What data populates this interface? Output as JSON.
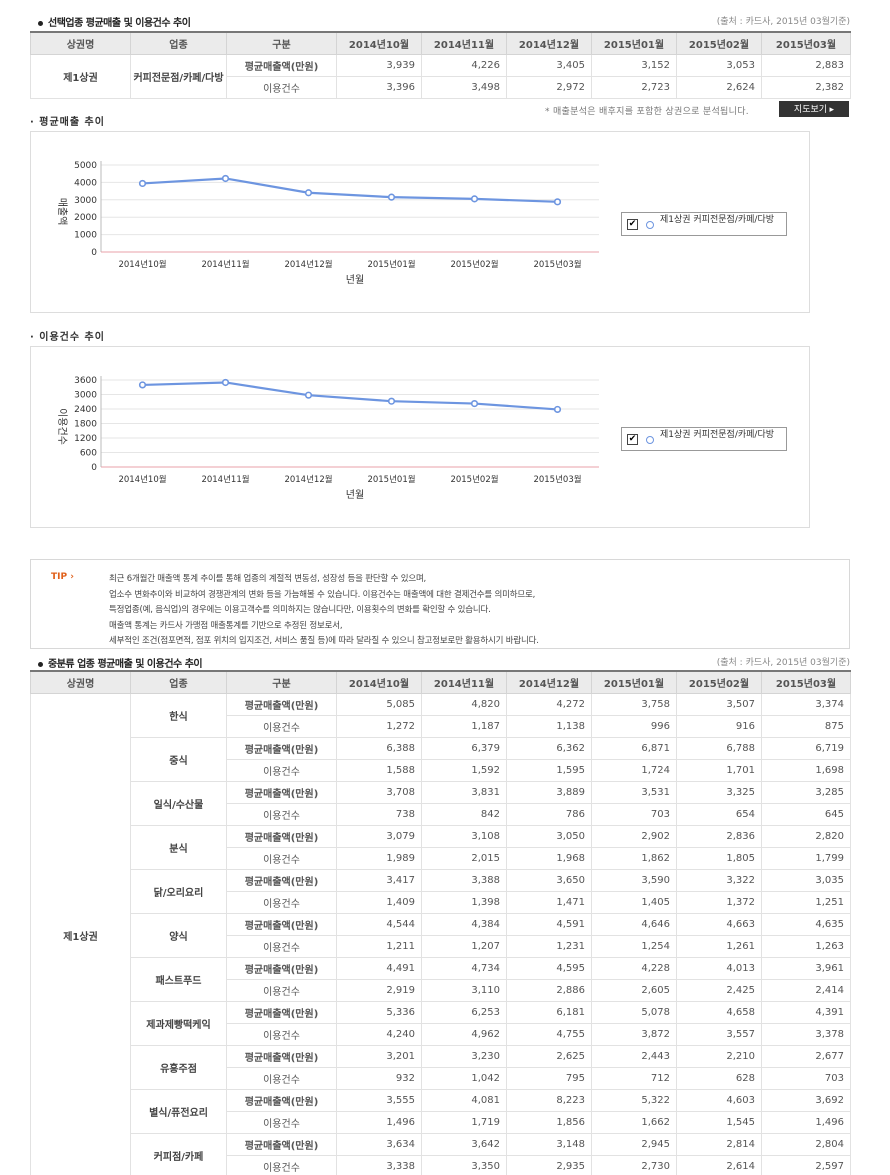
{
  "section1": {
    "title": "선택업종 평균매출 및 이용건수 추이",
    "source": "(출처 : 카드사, 2015년 03월기준)",
    "headers": [
      "상권명",
      "업종",
      "구분",
      "2014년10월",
      "2014년11월",
      "2014년12월",
      "2015년01월",
      "2015년02월",
      "2015년03월"
    ],
    "area": "제1상권",
    "industry": "커피전문점/카페/다방",
    "row_sales_label": "평균매출액(만원)",
    "row_count_label": "이용건수",
    "sales": [
      "3,939",
      "4,226",
      "3,405",
      "3,152",
      "3,053",
      "2,883"
    ],
    "counts": [
      "3,396",
      "3,498",
      "2,972",
      "2,723",
      "2,624",
      "2,382"
    ],
    "note": "* 매출분석은 배후지를 포함한 상권으로 분석됩니다.",
    "map_button": "지도보기 ▸"
  },
  "chart1": {
    "subtitle": "· 평균매출 추이",
    "ylabel": "매출액",
    "xlabel": "년월",
    "legend_label": "제1상권 커피전문점/카페/다방"
  },
  "chart2": {
    "subtitle": "· 이용건수 추이",
    "ylabel": "이용건수",
    "xlabel": "년월",
    "legend_label": "제1상권 커피전문점/카페/다방"
  },
  "chart_data": [
    {
      "type": "line",
      "categories": [
        "2014년10월",
        "2014년11월",
        "2014년12월",
        "2015년01월",
        "2015년02월",
        "2015년03월"
      ],
      "series": [
        {
          "name": "제1상권 커피전문점/카페/다방",
          "values": [
            3939,
            4226,
            3405,
            3152,
            3053,
            2883
          ]
        }
      ],
      "yticks": [
        0,
        1000,
        2000,
        3000,
        4000,
        5000
      ],
      "ylim": [
        0,
        5000
      ],
      "xlabel": "년월",
      "ylabel": "매출액",
      "legend": "right",
      "grid": true,
      "color": "#6d95e0"
    },
    {
      "type": "line",
      "categories": [
        "2014년10월",
        "2014년11월",
        "2014년12월",
        "2015년01월",
        "2015년02월",
        "2015년03월"
      ],
      "series": [
        {
          "name": "제1상권 커피전문점/카페/다방",
          "values": [
            3396,
            3498,
            2972,
            2723,
            2624,
            2382
          ]
        }
      ],
      "yticks": [
        0,
        600,
        1200,
        1800,
        2400,
        3000,
        3600
      ],
      "ylim": [
        0,
        3600
      ],
      "xlabel": "년월",
      "ylabel": "이용건수",
      "legend": "right",
      "grid": true,
      "color": "#6d95e0"
    }
  ],
  "tip": {
    "label": "TIP ›",
    "lines": [
      "최근 6개월간 매출액 통계 추이를 통해 업종의 계절적 변동성, 성장성 등을 판단할 수 있으며,",
      "업소수 변화추이와 비교하여 경쟁관계의 변화 등을 가늠해볼 수 있습니다. 이용건수는 매출액에 대한 결제건수를 의미하므로,",
      "특정업종(예, 음식업)의 경우에는 이용고객수를 의미하지는 않습니다만, 이용횟수의 변화를 확인할 수 있습니다.",
      "매출액 통계는 카드사 가맹점 매출통계를 기반으로 추정된 정보로서,",
      "세부적인 조건(점포면적, 점포 위치의 입지조건, 서비스 품질 등)에 따라 달라질 수 있으니 참고정보로만 활용하시기 바랍니다."
    ]
  },
  "section2": {
    "title": "중분류 업종 평균매출 및 이용건수 추이",
    "source": "(출처 : 카드사, 2015년 03월기준)",
    "headers": [
      "상권명",
      "업종",
      "구분",
      "2014년10월",
      "2014년11월",
      "2014년12월",
      "2015년01월",
      "2015년02월",
      "2015년03월"
    ],
    "area": "제1상권",
    "row_sales_label": "평균매출액(만원)",
    "row_count_label": "이용건수",
    "industries": [
      {
        "name": "한식",
        "sales": [
          "5,085",
          "4,820",
          "4,272",
          "3,758",
          "3,507",
          "3,374"
        ],
        "counts": [
          "1,272",
          "1,187",
          "1,138",
          "996",
          "916",
          "875"
        ]
      },
      {
        "name": "중식",
        "sales": [
          "6,388",
          "6,379",
          "6,362",
          "6,871",
          "6,788",
          "6,719"
        ],
        "counts": [
          "1,588",
          "1,592",
          "1,595",
          "1,724",
          "1,701",
          "1,698"
        ]
      },
      {
        "name": "일식/수산물",
        "sales": [
          "3,708",
          "3,831",
          "3,889",
          "3,531",
          "3,325",
          "3,285"
        ],
        "counts": [
          "738",
          "842",
          "786",
          "703",
          "654",
          "645"
        ]
      },
      {
        "name": "분식",
        "sales": [
          "3,079",
          "3,108",
          "3,050",
          "2,902",
          "2,836",
          "2,820"
        ],
        "counts": [
          "1,989",
          "2,015",
          "1,968",
          "1,862",
          "1,805",
          "1,799"
        ]
      },
      {
        "name": "닭/오리요리",
        "sales": [
          "3,417",
          "3,388",
          "3,650",
          "3,590",
          "3,322",
          "3,035"
        ],
        "counts": [
          "1,409",
          "1,398",
          "1,471",
          "1,405",
          "1,372",
          "1,251"
        ]
      },
      {
        "name": "양식",
        "sales": [
          "4,544",
          "4,384",
          "4,591",
          "4,646",
          "4,663",
          "4,635"
        ],
        "counts": [
          "1,211",
          "1,207",
          "1,231",
          "1,254",
          "1,261",
          "1,263"
        ]
      },
      {
        "name": "패스트푸드",
        "sales": [
          "4,491",
          "4,734",
          "4,595",
          "4,228",
          "4,013",
          "3,961"
        ],
        "counts": [
          "2,919",
          "3,110",
          "2,886",
          "2,605",
          "2,425",
          "2,414"
        ]
      },
      {
        "name": "제과제빵떡케익",
        "sales": [
          "5,336",
          "6,253",
          "6,181",
          "5,078",
          "4,658",
          "4,391"
        ],
        "counts": [
          "4,240",
          "4,962",
          "4,755",
          "3,872",
          "3,557",
          "3,378"
        ]
      },
      {
        "name": "유흥주점",
        "sales": [
          "3,201",
          "3,230",
          "2,625",
          "2,443",
          "2,210",
          "2,677"
        ],
        "counts": [
          "932",
          "1,042",
          "795",
          "712",
          "628",
          "703"
        ]
      },
      {
        "name": "별식/퓨전요리",
        "sales": [
          "3,555",
          "4,081",
          "8,223",
          "5,322",
          "4,603",
          "3,692"
        ],
        "counts": [
          "1,496",
          "1,719",
          "1,856",
          "1,662",
          "1,545",
          "1,496"
        ]
      },
      {
        "name": "커피점/카페",
        "sales": [
          "3,634",
          "3,642",
          "3,148",
          "2,945",
          "2,814",
          "2,804"
        ],
        "counts": [
          "3,338",
          "3,350",
          "2,935",
          "2,730",
          "2,614",
          "2,597"
        ]
      }
    ]
  }
}
